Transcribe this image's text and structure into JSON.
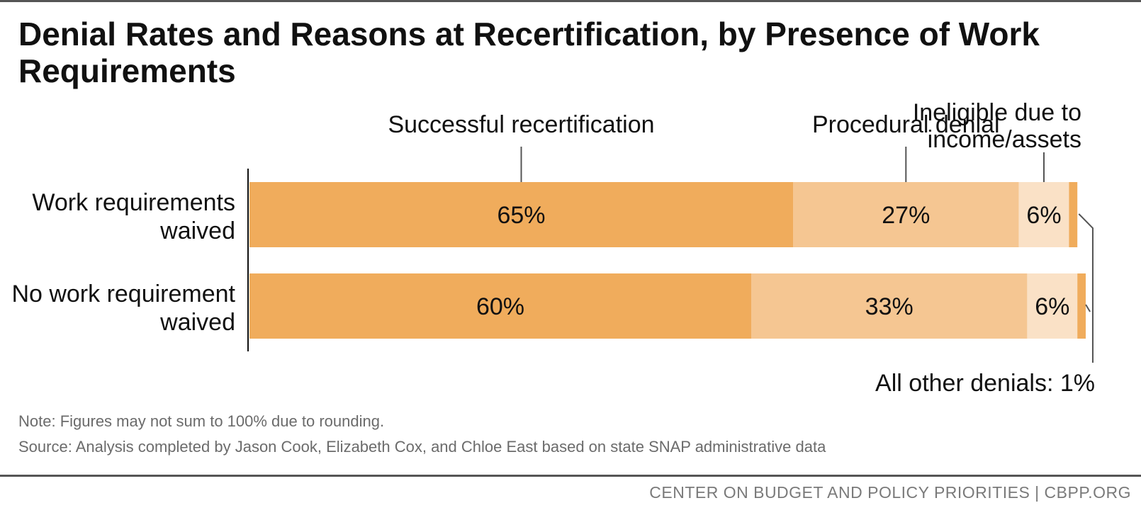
{
  "title": "Denial Rates and Reasons at Recertification, by Presence of Work Requirements",
  "note": "Note: Figures may not sum to 100% due to rounding.",
  "source": "Source: Analysis completed by Jason Cook, Elizabeth Cox, and Chloe East based on state SNAP administrative data",
  "footer": "CENTER ON BUDGET AND POLICY PRIORITIES | CBPP.ORG",
  "colors": {
    "successful": "#f0ac5c",
    "procedural": "#f5c692",
    "ineligible": "#fae1c6",
    "other": "#f0ac5c",
    "axis": "#111111",
    "callout": "#555555"
  },
  "chart_data": {
    "type": "bar",
    "orientation": "horizontal",
    "stacked": true,
    "categories": [
      [
        "Work requirements",
        "waived"
      ],
      [
        "No work requirement",
        "waived"
      ]
    ],
    "series": [
      {
        "name": "Successful recertification",
        "values": [
          65,
          60
        ],
        "labels": [
          "65%",
          "60%"
        ]
      },
      {
        "name": "Procedural denial",
        "values": [
          27,
          33
        ],
        "labels": [
          "27%",
          "33%"
        ]
      },
      {
        "name": "Ineligible due to income/assets",
        "name_lines": [
          "Ineligible due to",
          "income/assets"
        ],
        "values": [
          6,
          6
        ],
        "labels": [
          "6%",
          "6%"
        ]
      },
      {
        "name": "All other denials",
        "values": [
          1,
          1
        ],
        "labels": []
      }
    ],
    "annotation": "All other denials: 1%",
    "xlim": [
      0,
      100
    ],
    "grid": false,
    "legend": "none"
  }
}
